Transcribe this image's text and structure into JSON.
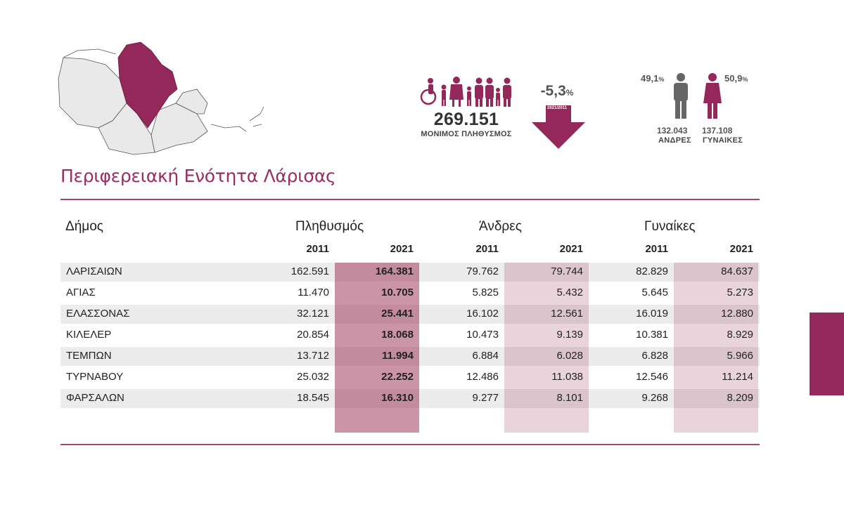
{
  "colors": {
    "accent": "#9b2d63",
    "accent_dark": "#94285a",
    "pop2021_bg": "#c6909f",
    "light_bg": "#ead3da",
    "row_bg": "#ececec"
  },
  "summary": {
    "population_value": "269.151",
    "population_label": "ΜΟΝΙΜΟΣ ΠΛΗΘΥΣΜΟΣ",
    "change_value": "-5,3",
    "change_unit": "%",
    "change_period": "2021/2011",
    "men_pct": "49,1",
    "women_pct": "50,9",
    "pct_unit": "%",
    "men_count": "132.043",
    "women_count": "137.108",
    "men_label": "ΑΝΔΡΕΣ",
    "women_label": "ΓΥΝΑΙΚΕΣ"
  },
  "title": "Περιφερειακή Ενότητα Λάρισας",
  "table": {
    "headers": {
      "municipality": "Δήμος",
      "population": "Πληθυσμός",
      "men": "Άνδρες",
      "women": "Γυναίκες"
    },
    "years": [
      "2011",
      "2021",
      "2011",
      "2021",
      "2011",
      "2021"
    ],
    "rows": [
      {
        "name": "ΛΑΡΙΣΑΙΩΝ",
        "v": [
          "162.591",
          "164.381",
          "79.762",
          "79.744",
          "82.829",
          "84.637"
        ]
      },
      {
        "name": "ΑΓΙΑΣ",
        "v": [
          "11.470",
          "10.705",
          "5.825",
          "5.432",
          "5.645",
          "5.273"
        ]
      },
      {
        "name": "ΕΛΑΣΣΟΝΑΣ",
        "v": [
          "32.121",
          "25.441",
          "16.102",
          "12.561",
          "16.019",
          "12.880"
        ]
      },
      {
        "name": "ΚΙΛΕΛΕΡ",
        "v": [
          "20.854",
          "18.068",
          "10.473",
          "9.139",
          "10.381",
          "8.929"
        ]
      },
      {
        "name": "ΤΕΜΠΩΝ",
        "v": [
          "13.712",
          "11.994",
          "6.884",
          "6.028",
          "6.828",
          "5.966"
        ]
      },
      {
        "name": "ΤΥΡΝΑΒΟΥ",
        "v": [
          "25.032",
          "22.252",
          "12.486",
          "11.038",
          "12.546",
          "11.214"
        ]
      },
      {
        "name": "ΦΑΡΣΑΛΩΝ",
        "v": [
          "18.545",
          "16.310",
          "9.277",
          "8.101",
          "9.268",
          "8.209"
        ]
      }
    ]
  }
}
